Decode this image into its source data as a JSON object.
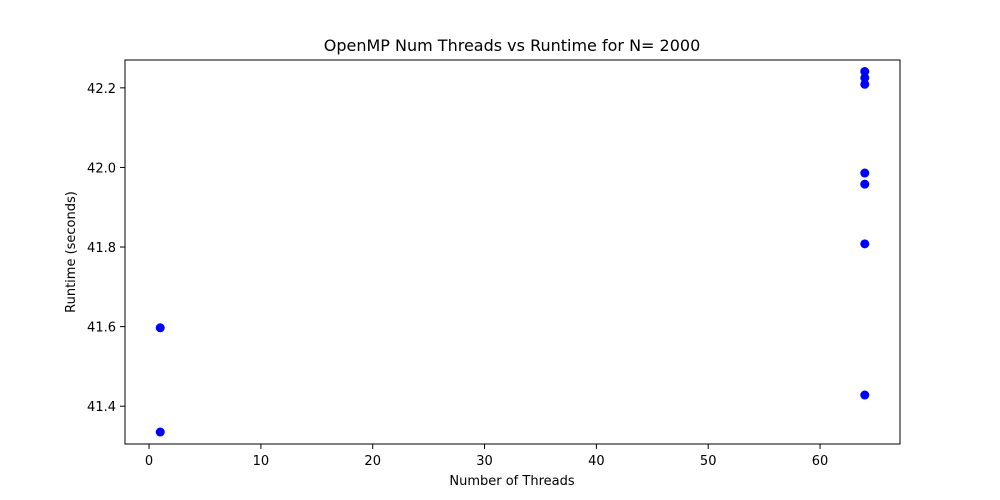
{
  "chart_data": {
    "type": "scatter",
    "title": "OpenMP Num Threads vs Runtime for N= 2000",
    "xlabel": "Number of Threads",
    "ylabel": "Runtime (seconds)",
    "xlim": [
      -2.15,
      67.15
    ],
    "ylim": [
      41.305,
      42.27
    ],
    "xticks": [
      0,
      10,
      20,
      30,
      40,
      50,
      60
    ],
    "xtick_labels": [
      "0",
      "10",
      "20",
      "30",
      "40",
      "50",
      "60"
    ],
    "yticks": [
      41.4,
      41.6,
      41.8,
      42.0,
      42.2
    ],
    "ytick_labels": [
      "41.4",
      "41.6",
      "41.8",
      "42.0",
      "42.2"
    ],
    "grid": false,
    "series": [
      {
        "color": "#0000ff",
        "points": [
          {
            "x": 1,
            "y": 41.335
          },
          {
            "x": 1,
            "y": 41.597
          },
          {
            "x": 64,
            "y": 41.428
          },
          {
            "x": 64,
            "y": 41.808
          },
          {
            "x": 64,
            "y": 41.958
          },
          {
            "x": 64,
            "y": 41.986
          },
          {
            "x": 64,
            "y": 42.209
          },
          {
            "x": 64,
            "y": 42.225
          },
          {
            "x": 64,
            "y": 42.241
          }
        ]
      }
    ]
  }
}
